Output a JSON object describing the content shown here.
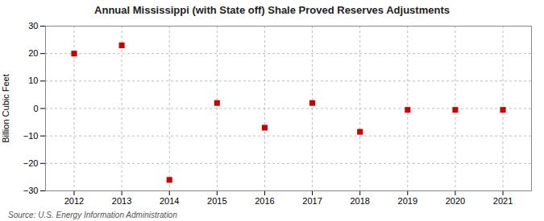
{
  "chart_data": {
    "type": "scatter",
    "title": "Annual Mississippi (with State off) Shale Proved Reserves Adjustments",
    "ylabel": "Billion Cubic Feet",
    "source": "Source: U.S. Energy Information Administration",
    "x": [
      2012,
      2013,
      2014,
      2015,
      2016,
      2017,
      2018,
      2019,
      2020,
      2021
    ],
    "values": [
      20.0,
      23.0,
      -26.0,
      2.0,
      -7.0,
      2.0,
      -8.5,
      -0.5,
      -0.5,
      -0.5
    ],
    "color": "#CC0000",
    "marker": "square",
    "xlim": [
      2011.4,
      2021.6
    ],
    "xticks": [
      2012,
      2013,
      2014,
      2015,
      2016,
      2017,
      2018,
      2019,
      2020,
      2021
    ],
    "ylim": [
      -30,
      30
    ],
    "yticks": [
      -30,
      -20,
      -10,
      0,
      10,
      20,
      30
    ],
    "grid": true
  }
}
